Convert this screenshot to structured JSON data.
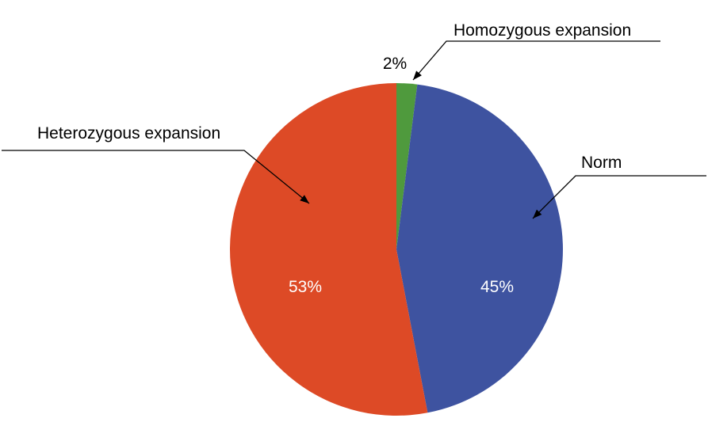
{
  "chart_data": {
    "type": "pie",
    "title": "",
    "unit": "%",
    "direction": "clockwise",
    "start_angle_deg": 0,
    "legend_position": "none",
    "background_color": "#ffffff",
    "callout_line_color": "#000000",
    "slices": [
      {
        "id": "homozygous-expansion",
        "label": "Homozygous expansion",
        "value": 2,
        "pct_label": "2%",
        "color": "#4F9A3D"
      },
      {
        "id": "norm",
        "label": "Norm",
        "value": 45,
        "pct_label": "45%",
        "color": "#3E53A0"
      },
      {
        "id": "heterozygous-expansion",
        "label": "Heterozygous expansion",
        "value": 53,
        "pct_label": "53%",
        "color": "#DD4A26"
      }
    ]
  }
}
